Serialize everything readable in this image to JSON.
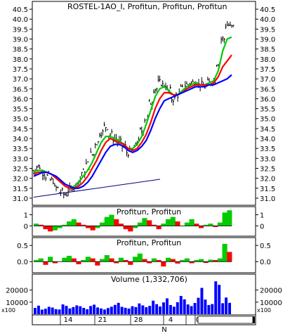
{
  "chart_data": [
    {
      "type": "candlestick-line",
      "title": "ROSTEL-1AO_I, Profitun, Profitun, Profitun",
      "y_ticks": [
        "31.0",
        "31.5",
        "32.0",
        "32.5",
        "33.0",
        "33.5",
        "34.0",
        "34.5",
        "35.0",
        "35.5",
        "36.0",
        "36.5",
        "37.0",
        "37.5",
        "38.0",
        "38.5",
        "39.0",
        "39.5",
        "40.0",
        "40.5"
      ],
      "ylim": [
        30.75,
        40.75
      ],
      "price_series": [
        32.4,
        32.6,
        32.3,
        32.1,
        31.9,
        31.5,
        31.3,
        31.2,
        31.4,
        31.6,
        31.9,
        32.3,
        32.7,
        33.2,
        33.8,
        34.3,
        34.6,
        34.2,
        34.0,
        33.8,
        33.6,
        33.3,
        33.4,
        33.8,
        34.4,
        35.0,
        35.8,
        36.5,
        36.8,
        36.7,
        36.4,
        36.0,
        36.2,
        36.5,
        36.7,
        36.8,
        36.9,
        36.7,
        36.6,
        36.8,
        36.9,
        37.8,
        39.0,
        39.7,
        39.6
      ],
      "ma_series": [
        {
          "color": "#00cc00",
          "values": [
            32.3,
            32.4,
            32.4,
            32.3,
            32.2,
            32.0,
            31.8,
            31.6,
            31.5,
            31.6,
            31.8,
            32.1,
            32.4,
            32.8,
            33.3,
            33.8,
            34.1,
            34.1,
            34.0,
            33.9,
            33.7,
            33.5,
            33.5,
            33.7,
            34.1,
            34.7,
            35.4,
            36.1,
            36.5,
            36.6,
            36.4,
            36.2,
            36.2,
            36.4,
            36.6,
            36.7,
            36.8,
            36.7,
            36.7,
            36.8,
            36.9,
            37.4,
            38.4,
            39.0,
            39.1
          ]
        },
        {
          "color": "#ff0000",
          "values": [
            32.2,
            32.3,
            32.3,
            32.3,
            32.2,
            32.0,
            31.8,
            31.6,
            31.5,
            31.5,
            31.6,
            31.8,
            32.1,
            32.5,
            32.9,
            33.4,
            33.8,
            34.0,
            33.9,
            33.8,
            33.7,
            33.5,
            33.4,
            33.5,
            33.8,
            34.2,
            34.8,
            35.5,
            36.0,
            36.3,
            36.3,
            36.2,
            36.2,
            36.3,
            36.5,
            36.6,
            36.7,
            36.7,
            36.7,
            36.7,
            36.8,
            37.1,
            37.6,
            37.9,
            38.2
          ]
        },
        {
          "color": "#0000ff",
          "values": [
            32.1,
            32.2,
            32.3,
            32.3,
            32.2,
            32.1,
            31.9,
            31.7,
            31.6,
            31.5,
            31.5,
            31.6,
            31.8,
            32.1,
            32.5,
            32.9,
            33.3,
            33.6,
            33.7,
            33.7,
            33.6,
            33.4,
            33.3,
            33.4,
            33.6,
            33.9,
            34.4,
            35.0,
            35.5,
            35.9,
            36.0,
            36.1,
            36.2,
            36.3,
            36.4,
            36.5,
            36.6,
            36.6,
            36.6,
            36.7,
            36.7,
            36.8,
            36.9,
            37.0,
            37.2
          ]
        }
      ],
      "trendline": {
        "from": [
          0,
          31.05
        ],
        "to": [
          1,
          31.95
        ]
      }
    },
    {
      "type": "histogram",
      "title": "Profitun, Profitun",
      "y_ticks": [
        "1",
        "0"
      ],
      "ylim": [
        -0.8,
        1.6
      ],
      "values": [
        0.2,
        0.1,
        -0.3,
        -0.5,
        -0.4,
        -0.2,
        0.1,
        0.4,
        0.6,
        0.3,
        0.1,
        -0.2,
        -0.4,
        -0.2,
        0.3,
        0.8,
        1.0,
        0.6,
        0.2,
        -0.3,
        -0.5,
        -0.2,
        0.3,
        0.7,
        0.5,
        0.1,
        -0.3,
        0.2,
        0.6,
        0.8,
        0.4,
        0.0,
        0.3,
        0.6,
        0.2,
        -0.2,
        0.1,
        0.2,
        -0.1,
        0.3,
        1.2,
        1.4
      ]
    },
    {
      "type": "histogram",
      "title": "Profitun, Profitun",
      "y_ticks": [
        "0.5",
        "0.0"
      ],
      "ylim": [
        -0.3,
        0.7
      ],
      "values": [
        0.05,
        0.1,
        -0.1,
        0.15,
        -0.05,
        0.0,
        0.12,
        0.18,
        0.1,
        -0.08,
        0.05,
        0.15,
        0.1,
        -0.12,
        0.08,
        0.2,
        0.1,
        -0.05,
        0.12,
        0.05,
        -0.1,
        0.15,
        0.25,
        0.08,
        -0.05,
        0.1,
        0.05,
        -0.15,
        0.12,
        0.08,
        -0.06,
        0.05,
        0.1,
        -0.05,
        0.05,
        0.08,
        -0.04,
        0.06,
        0.05,
        0.1,
        0.55,
        0.3
      ]
    },
    {
      "type": "bar",
      "title": "Volume (1,332,706)",
      "y_ticks": [
        "20000",
        "10000"
      ],
      "unit_label": "x100",
      "ylim": [
        0,
        32000
      ],
      "values": [
        5200,
        7100,
        3800,
        4500,
        6100,
        5500,
        4200,
        3900,
        8100,
        6900,
        4800,
        5900,
        7300,
        6600,
        5200,
        4100,
        6800,
        7900,
        5600,
        4800,
        3900,
        5100,
        6200,
        7700,
        9400,
        6100,
        5300,
        4700,
        6600,
        5900,
        8900,
        7300,
        5800,
        6900,
        11200,
        8300,
        6400,
        9800,
        13100,
        7600,
        6200,
        9900,
        15100,
        12300,
        8100,
        6700,
        9300,
        13600,
        21800,
        12100,
        7600,
        8400,
        27200,
        24300,
        9100,
        13800,
        9400
      ]
    }
  ],
  "x_axis": {
    "labels": [
      "14",
      "21",
      "28",
      "4",
      "N",
      "0"
    ]
  }
}
